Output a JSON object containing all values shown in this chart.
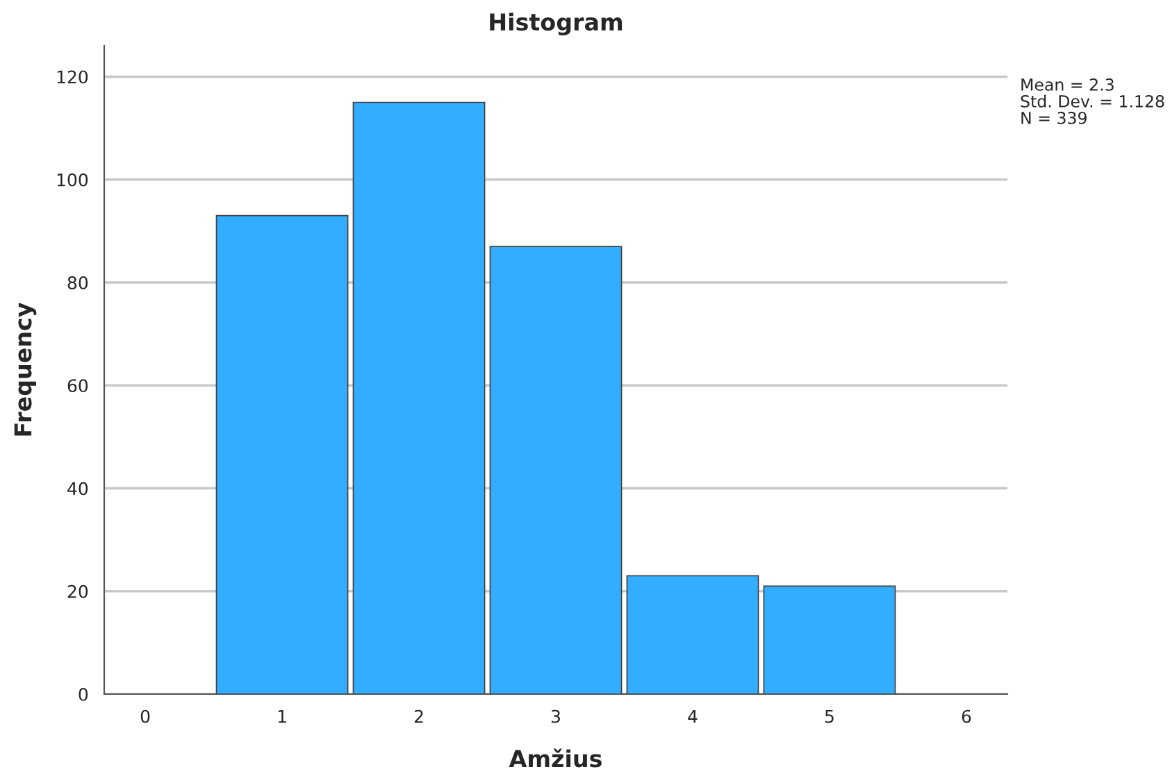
{
  "chart_data": {
    "type": "histogram",
    "title": "Histogram",
    "xlabel": "Amžius",
    "ylabel": "Frequency",
    "bins": [
      0.5,
      1.5,
      2.5,
      3.5,
      4.5,
      5.5
    ],
    "values": [
      93,
      115,
      87,
      23,
      21
    ],
    "color": "#33adff",
    "xlim": [
      -0.3,
      6.3
    ],
    "xticks": [
      0,
      1,
      2,
      3,
      4,
      5,
      6
    ],
    "ylim": [
      0,
      126
    ],
    "yticks": [
      0,
      20,
      40,
      60,
      80,
      100,
      120
    ],
    "grid": "y",
    "legend": false,
    "annotations": [
      "Mean = 2.3",
      "Std. Dev. = 1.128",
      "N = 339"
    ]
  }
}
